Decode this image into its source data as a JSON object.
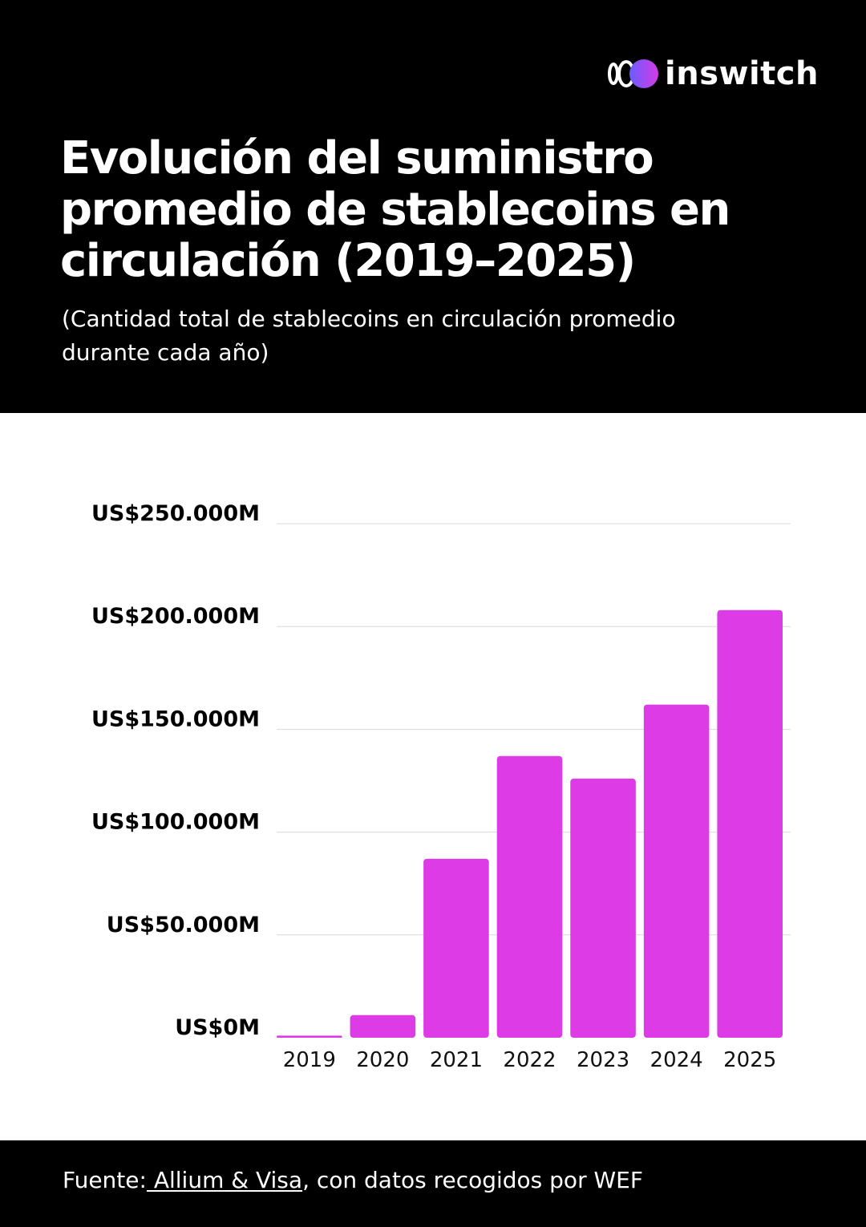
{
  "brand": {
    "name": "inswitch",
    "icon": "inswitch-logo-icon"
  },
  "colors": {
    "header_background": "#000000",
    "bar": "#DD3BE6",
    "gridline": "#D9D9D9"
  },
  "header": {
    "title": "Evolución del suministro promedio de stablecoins en circulación (2019–2025)",
    "subtitle": "(Cantidad total de stablecoins en circulación promedio durante cada año)"
  },
  "footer": {
    "source_prefix": "Fuente:",
    "source_link": " Allium & Visa",
    "source_suffix": ", con datos recogidos por WEF"
  },
  "chart_data": {
    "type": "bar",
    "categories": [
      "2019",
      "2020",
      "2021",
      "2022",
      "2023",
      "2024",
      "2025"
    ],
    "values": [
      1000,
      11000,
      87000,
      137000,
      126000,
      162000,
      208000
    ],
    "ylim": [
      0,
      250000
    ],
    "yticks": [
      {
        "value": 0,
        "label": "US$0M"
      },
      {
        "value": 50000,
        "label": "US$50.000M"
      },
      {
        "value": 100000,
        "label": "US$100.000M"
      },
      {
        "value": 150000,
        "label": "US$150.000M"
      },
      {
        "value": 200000,
        "label": "US$200.000M"
      },
      {
        "value": 250000,
        "label": "US$250.000M"
      }
    ],
    "grid": true,
    "legend": "none",
    "title": "",
    "xlabel": "",
    "ylabel": ""
  }
}
